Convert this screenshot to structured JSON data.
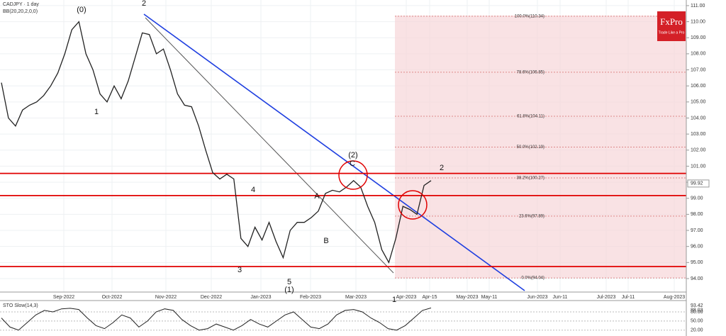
{
  "chart_data": {
    "type": "line",
    "title": "CADJPY · 1 day",
    "subtitle": "BB(20,20,2,0,0)",
    "logo": "FxPro",
    "tagline": "Trade Like a Pro",
    "color": "#222222",
    "values": [
      106.2,
      104.0,
      103.5,
      104.5,
      104.8,
      105.0,
      105.4,
      106.0,
      106.8,
      108.0,
      109.5,
      110.0,
      108.0,
      107.0,
      105.5,
      105.0,
      106.0,
      105.2,
      106.3,
      107.8,
      109.3,
      109.2,
      108.0,
      108.3,
      107.0,
      105.5,
      104.8,
      104.7,
      103.5,
      102.0,
      100.6,
      100.2,
      100.5,
      100.2,
      96.5,
      96.0,
      97.2,
      96.4,
      97.5,
      96.3,
      95.3,
      97.0,
      97.5,
      97.5,
      97.8,
      98.2,
      99.3,
      99.5,
      99.4,
      99.7,
      100.1,
      99.7,
      98.5,
      97.5,
      95.8,
      95.0,
      96.5,
      98.5,
      98.3,
      98.0,
      99.8,
      100.1
    ],
    "x_labels": [
      "Sep-2022",
      "Oct-2022",
      "Nov-2022",
      "Dec-2022",
      "Jan-2023",
      "Feb-2023",
      "Mar-2023",
      "Apr-2023",
      "Apr-15",
      "May-2023",
      "May-11",
      "Jun-2023",
      "Jun-11",
      "Jul-2023",
      "Jul-11",
      "Aug-2023"
    ],
    "ylim": [
      93.16,
      111.35
    ],
    "yticks": [
      {
        "value": 94,
        "label": "94.00"
      },
      {
        "value": 95,
        "label": "95.00"
      },
      {
        "value": 96,
        "label": "96.00"
      },
      {
        "value": 97,
        "label": "97.00"
      },
      {
        "value": 98,
        "label": "98.00"
      },
      {
        "value": 99,
        "label": "99.00"
      },
      {
        "value": 100,
        "label": "100.00"
      },
      {
        "value": 101,
        "label": "101.00"
      },
      {
        "value": 102,
        "label": "102.00"
      },
      {
        "value": 103,
        "label": "103.00"
      },
      {
        "value": 104,
        "label": "104.00"
      },
      {
        "value": 105,
        "label": "105.00"
      },
      {
        "value": 106,
        "label": "106.00"
      },
      {
        "value": 107,
        "label": "107.00"
      },
      {
        "value": 108,
        "label": "108.00"
      },
      {
        "value": 109,
        "label": "109.00"
      },
      {
        "value": 110,
        "label": "110.00"
      },
      {
        "value": 111,
        "label": "111.00"
      }
    ],
    "grid": true,
    "last_price": {
      "value": 99.92,
      "label": "99.92"
    },
    "levels": [
      100.55,
      99.17,
      94.75
    ],
    "level_color": "#e00000",
    "fib_levels": [
      {
        "value": 110.34,
        "label": "100.0%(110.34)"
      },
      {
        "value": 106.85,
        "label": "78.6%(106.85)"
      },
      {
        "value": 104.11,
        "label": "61.8%(104.11)"
      },
      {
        "value": 102.19,
        "label": "50.0%(102.19)"
      },
      {
        "value": 100.27,
        "label": "38.2%(100.27)"
      },
      {
        "value": 97.89,
        "label": "23.6%(97.89)"
      },
      {
        "value": 94.04,
        "label": "0.0%(94.04)"
      }
    ],
    "wave_labels": [
      "(0)",
      "1",
      "2",
      "3",
      "4",
      "5",
      "(1)",
      "(2)",
      "A",
      "B",
      "C",
      "1",
      "2"
    ],
    "indicator": {
      "title": "STO Slow(14,3)",
      "ylim": [
        10,
        115
      ],
      "yticks": [
        {
          "value": 20,
          "label": "20.00"
        },
        {
          "value": 50,
          "label": "50.00"
        },
        {
          "value": 80,
          "label": "80.00"
        }
      ],
      "last_values": [
        {
          "value": 93.42,
          "label": "93.42"
        },
        {
          "value": 88.03,
          "label": "88.03"
        }
      ],
      "values": [
        60,
        30,
        20,
        45,
        70,
        85,
        80,
        90,
        92,
        88,
        60,
        35,
        25,
        45,
        70,
        60,
        30,
        50,
        80,
        90,
        85,
        55,
        35,
        20,
        25,
        40,
        30,
        20,
        35,
        55,
        40,
        30,
        50,
        70,
        80,
        55,
        30,
        25,
        40,
        70,
        85,
        88,
        80,
        60,
        45,
        25,
        20,
        35,
        60,
        85,
        93
      ]
    }
  }
}
